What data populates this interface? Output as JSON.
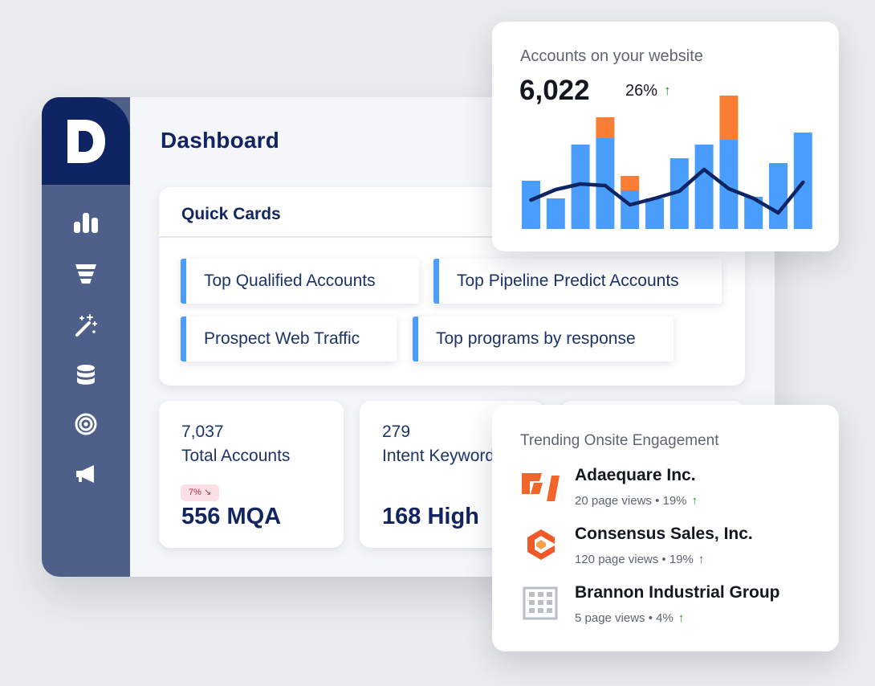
{
  "dashboard": {
    "title": "Dashboard",
    "nav": [
      {
        "icon": "bar-chart-icon"
      },
      {
        "icon": "funnel-icon"
      },
      {
        "icon": "magic-wand-icon"
      },
      {
        "icon": "database-icon"
      },
      {
        "icon": "target-icon"
      },
      {
        "icon": "megaphone-icon"
      }
    ]
  },
  "quick_cards": {
    "title": "Quick Cards",
    "items": [
      {
        "label": "Top Qualified Accounts"
      },
      {
        "label": "Top Pipeline Predict Accounts"
      },
      {
        "label": "Prospect Web Traffic"
      },
      {
        "label": "Top programs by response"
      }
    ]
  },
  "stats": [
    {
      "number": "7,037",
      "label": "Total Accounts",
      "badge": "7% ↘",
      "big": "556 MQA"
    },
    {
      "number": "279",
      "label": "Intent Keywords",
      "big": "168 High"
    }
  ],
  "accounts_card": {
    "title": "Accounts on your website",
    "value": "6,022",
    "change": "26%",
    "change_arrow": "↑"
  },
  "chart_data": {
    "type": "bar",
    "series": [
      {
        "values": [
          60,
          38,
          105,
          113,
          48,
          38,
          88,
          105,
          111,
          40,
          82,
          120
        ]
      },
      {
        "values": [
          0,
          0,
          0,
          26,
          18,
          0,
          0,
          0,
          55,
          0,
          0,
          0
        ]
      },
      {
        "values": [
          36,
          49,
          56,
          54,
          30,
          38,
          47,
          74,
          50,
          38,
          20,
          58
        ]
      }
    ],
    "ylim": [
      0,
      170
    ],
    "colors": {
      "bar": "#4b9dfb",
      "stack": "#fa7d34",
      "line": "#0f2563"
    }
  },
  "trending": {
    "title": "Trending Onsite Engagement",
    "items": [
      {
        "name": "Adaequare Inc.",
        "meta": "20 page views • 19%",
        "arrow": "↑",
        "logo": "adaequare-logo-icon"
      },
      {
        "name": "Consensus Sales, Inc.",
        "meta": "120 page views • 19%",
        "arrow": "↑",
        "logo": "consensus-logo-icon"
      },
      {
        "name": "Brannon Industrial Group",
        "meta": "5 page views • 4%",
        "arrow": "↑",
        "logo": "building-icon"
      }
    ]
  }
}
